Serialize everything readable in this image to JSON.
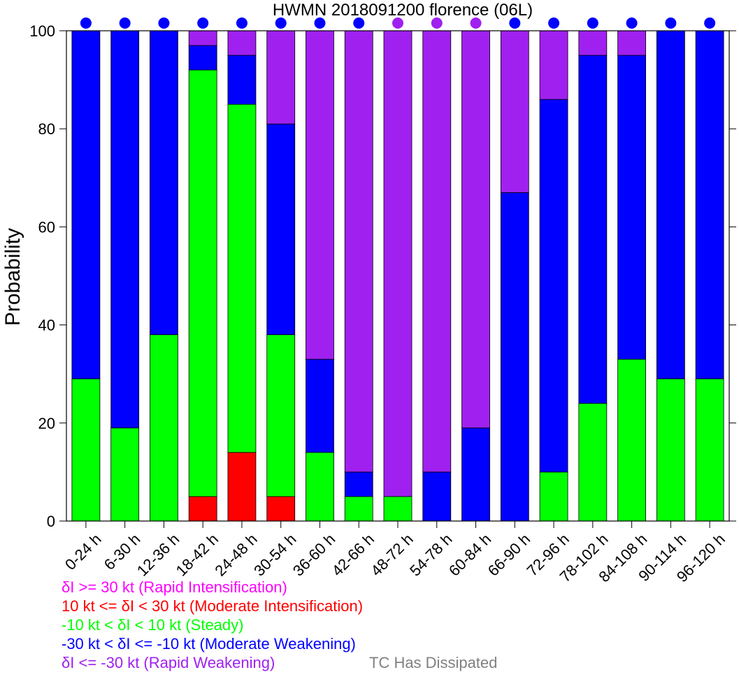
{
  "chart_data": {
    "type": "bar",
    "stacked": true,
    "title": "HWMN 2018091200 florence (06L)",
    "ylabel": "Probability",
    "xlabel": "",
    "ylim": [
      0,
      100
    ],
    "yticks": [
      0,
      20,
      40,
      60,
      80,
      100
    ],
    "grid": false,
    "categories": [
      "0-24 h",
      "6-30 h",
      "12-36 h",
      "18-42 h",
      "24-48 h",
      "30-54 h",
      "36-60 h",
      "42-66 h",
      "48-72 h",
      "54-78 h",
      "60-84 h",
      "66-90 h",
      "72-96 h",
      "78-102 h",
      "84-108 h",
      "90-114 h",
      "96-120 h"
    ],
    "series": [
      {
        "key": "ri",
        "color": "#ff00ff",
        "values": [
          0,
          0,
          0,
          0,
          0,
          0,
          0,
          0,
          0,
          0,
          0,
          0,
          0,
          0,
          0,
          0,
          0
        ]
      },
      {
        "key": "mi",
        "color": "#ff0000",
        "values": [
          0,
          0,
          0,
          5,
          14,
          5,
          0,
          0,
          0,
          0,
          0,
          0,
          0,
          0,
          0,
          0,
          0
        ]
      },
      {
        "key": "steady",
        "color": "#00ff00",
        "values": [
          29,
          19,
          38,
          87,
          71,
          33,
          14,
          5,
          5,
          0,
          0,
          0,
          10,
          24,
          33,
          29,
          29
        ]
      },
      {
        "key": "mw",
        "color": "#0000ff",
        "values": [
          71,
          81,
          62,
          5,
          10,
          43,
          19,
          5,
          0,
          10,
          19,
          67,
          76,
          71,
          62,
          71,
          71
        ]
      },
      {
        "key": "rw",
        "color": "#a020f0",
        "values": [
          0,
          0,
          0,
          3,
          5,
          19,
          67,
          90,
          95,
          90,
          81,
          33,
          14,
          5,
          5,
          0,
          0
        ]
      }
    ],
    "top_markers": [
      "#0000ff",
      "#0000ff",
      "#0000ff",
      "#0000ff",
      "#0000ff",
      "#0000ff",
      "#0000ff",
      "#0000ff",
      "#a020f0",
      "#a020f0",
      "#a020f0",
      "#0000ff",
      "#0000ff",
      "#0000ff",
      "#0000ff",
      "#0000ff",
      "#0000ff"
    ]
  },
  "legend": {
    "items": [
      {
        "text": "δI >= 30 kt (Rapid Intensification)",
        "color": "#ff00ff"
      },
      {
        "text": "10 kt <= δI < 30 kt (Moderate Intensification)",
        "color": "#ff0000"
      },
      {
        "text": "-10 kt < δI < 10 kt (Steady)",
        "color": "#00ff00"
      },
      {
        "text": "-30 kt < δI <= -10 kt (Moderate Weakening)",
        "color": "#0000ff"
      },
      {
        "text": "δI <= -30 kt (Rapid Weakening)",
        "color": "#a020f0"
      }
    ],
    "dissipated": {
      "text": "TC Has Dissipated",
      "color": "#808080"
    }
  }
}
